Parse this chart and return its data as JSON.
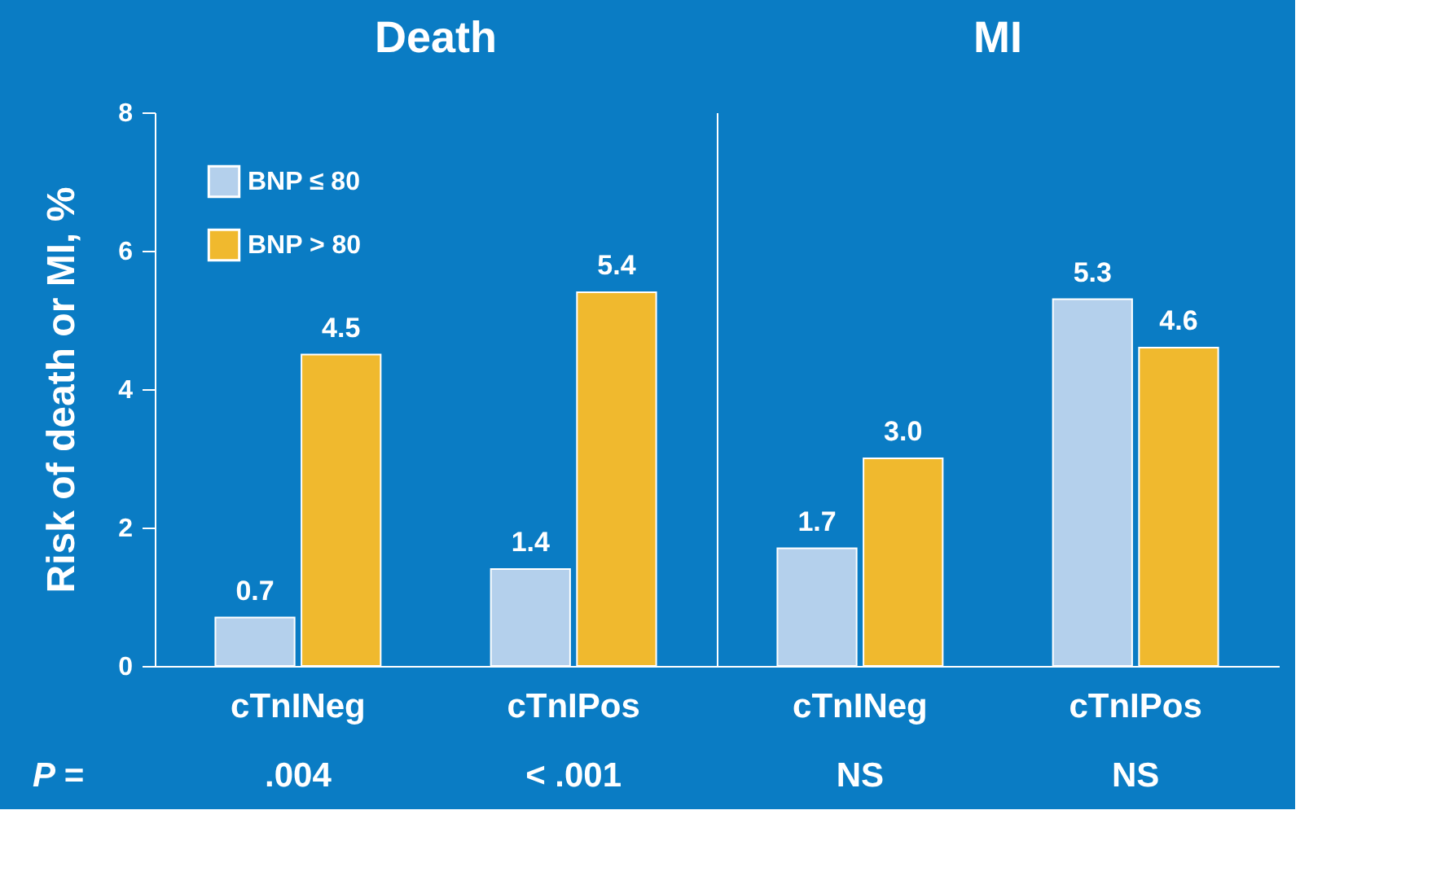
{
  "chart_data": [
    {
      "type": "bar",
      "title": "Death",
      "ylabel": "Risk of death or MI, %",
      "categories": [
        "cTnINeg",
        "cTnIPos"
      ],
      "series": [
        {
          "name": "BNP ≤ 80",
          "color": "#b4d0ec",
          "values": [
            0.7,
            1.4
          ],
          "value_labels": [
            "0.7",
            "1.4"
          ]
        },
        {
          "name": "BNP > 80",
          "color": "#f0b92e",
          "values": [
            4.5,
            5.4
          ],
          "value_labels": [
            "4.5",
            "5.4"
          ]
        }
      ],
      "ylim": [
        0,
        8
      ],
      "yticks": [
        0,
        2,
        4,
        6,
        8
      ],
      "legend": "top left",
      "grid": false,
      "annotations": [
        "P =",
        ".004",
        "< .001"
      ]
    },
    {
      "type": "bar",
      "title": "MI",
      "categories": [
        "cTnINeg",
        "cTnIPos"
      ],
      "series": [
        {
          "color": "#b4d0ec",
          "values": [
            1.7,
            5.3
          ],
          "value_labels": [
            "1.7",
            "5.3"
          ]
        },
        {
          "color": "#f0b92e",
          "values": [
            3.0,
            4.6
          ],
          "value_labels": [
            "3.0",
            "4.6"
          ]
        }
      ],
      "ylim": [
        0,
        8
      ],
      "yticks": [
        0,
        2,
        4,
        6,
        8
      ],
      "tick_labels": "x",
      "legend": false,
      "grid": false,
      "annotations": [
        "NS",
        "NS"
      ]
    }
  ]
}
